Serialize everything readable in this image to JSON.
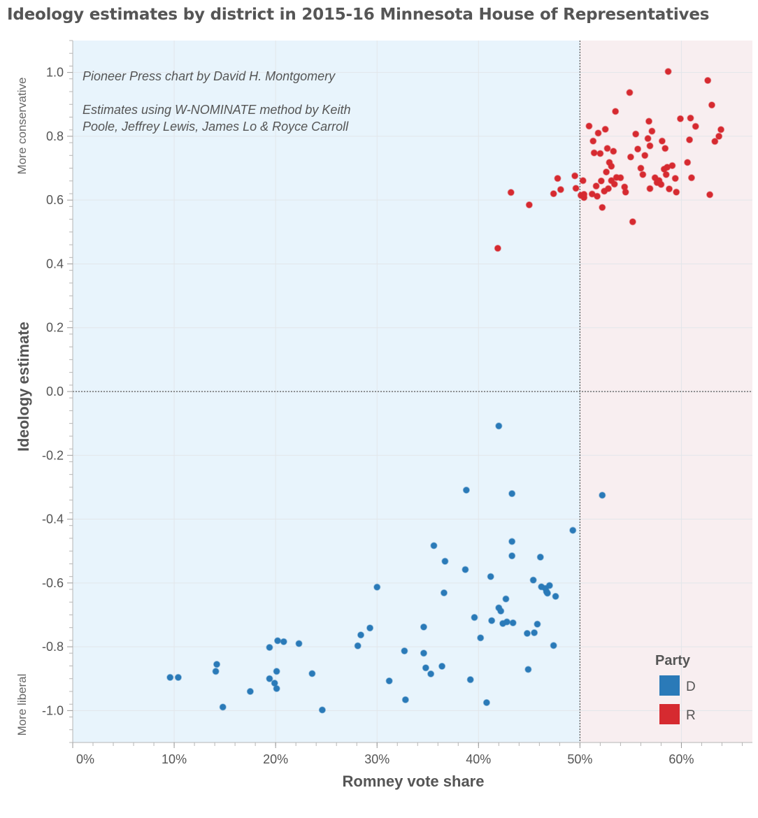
{
  "chart_data": {
    "type": "scatter",
    "title": "Ideology estimates by district in 2015-16 Minnesota House of Representatives",
    "xlabel": "Romney vote share",
    "ylabel": "Ideology estimate",
    "ylabel_top": "More conservative",
    "ylabel_bottom": "More liberal",
    "annotations": [
      "Pioneer Press chart by David H. Montgomery",
      "Estimates using W-NOMINATE method by Keith",
      "Poole, Jeffrey Lewis, James Lo & Royce Carroll"
    ],
    "xlim": [
      0,
      0.67
    ],
    "ylim": [
      -1.1,
      1.1
    ],
    "x_ticks": [
      0,
      0.1,
      0.2,
      0.3,
      0.4,
      0.5,
      0.6
    ],
    "x_tick_labels": [
      "0%",
      "10%",
      "20%",
      "30%",
      "40%",
      "50%",
      "60%"
    ],
    "y_ticks": [
      1.0,
      0.8,
      0.6,
      0.4,
      0.2,
      0.0,
      -0.2,
      -0.4,
      -0.6,
      -0.8,
      -1.0
    ],
    "y_tick_labels": [
      "1.0",
      "0.8",
      "0.6",
      "0.4",
      "0.2",
      "0.0",
      "-0.2",
      "-0.4",
      "-0.6",
      "-0.8",
      "-1.0"
    ],
    "reference_lines": {
      "x": 0.5,
      "y": 0.0
    },
    "background_regions": [
      {
        "x_from": 0,
        "x_to": 0.5,
        "color": "#e8f4fc"
      },
      {
        "x_from": 0.5,
        "x_to": 0.67,
        "color": "#f8eef0"
      }
    ],
    "grid": true,
    "legend": {
      "title": "Party",
      "position": "bottom-right",
      "entries": [
        "D",
        "R"
      ]
    },
    "series": [
      {
        "name": "D",
        "color": "#2a7ab8",
        "points": [
          [
            0.096,
            -0.896
          ],
          [
            0.104,
            -0.896
          ],
          [
            0.141,
            -0.877
          ],
          [
            0.142,
            -0.855
          ],
          [
            0.148,
            -0.989
          ],
          [
            0.175,
            -0.94
          ],
          [
            0.194,
            -0.802
          ],
          [
            0.194,
            -0.9
          ],
          [
            0.199,
            -0.914
          ],
          [
            0.201,
            -0.931
          ],
          [
            0.201,
            -0.877
          ],
          [
            0.202,
            -0.781
          ],
          [
            0.208,
            -0.784
          ],
          [
            0.223,
            -0.79
          ],
          [
            0.236,
            -0.884
          ],
          [
            0.246,
            -0.998
          ],
          [
            0.281,
            -0.797
          ],
          [
            0.284,
            -0.763
          ],
          [
            0.293,
            -0.741
          ],
          [
            0.3,
            -0.613
          ],
          [
            0.312,
            -0.907
          ],
          [
            0.327,
            -0.813
          ],
          [
            0.328,
            -0.966
          ],
          [
            0.346,
            -0.738
          ],
          [
            0.346,
            -0.82
          ],
          [
            0.348,
            -0.866
          ],
          [
            0.353,
            -0.885
          ],
          [
            0.356,
            -0.483
          ],
          [
            0.364,
            -0.861
          ],
          [
            0.366,
            -0.631
          ],
          [
            0.367,
            -0.532
          ],
          [
            0.387,
            -0.558
          ],
          [
            0.388,
            -0.309
          ],
          [
            0.392,
            -0.903
          ],
          [
            0.396,
            -0.708
          ],
          [
            0.402,
            -0.772
          ],
          [
            0.408,
            -0.975
          ],
          [
            0.412,
            -0.58
          ],
          [
            0.413,
            -0.718
          ],
          [
            0.42,
            -0.108
          ],
          [
            0.42,
            -0.678
          ],
          [
            0.422,
            -0.688
          ],
          [
            0.424,
            -0.727
          ],
          [
            0.427,
            -0.65
          ],
          [
            0.428,
            -0.722
          ],
          [
            0.433,
            -0.32
          ],
          [
            0.433,
            -0.47
          ],
          [
            0.433,
            -0.515
          ],
          [
            0.434,
            -0.725
          ],
          [
            0.448,
            -0.758
          ],
          [
            0.449,
            -0.871
          ],
          [
            0.454,
            -0.591
          ],
          [
            0.455,
            -0.756
          ],
          [
            0.458,
            -0.729
          ],
          [
            0.461,
            -0.519
          ],
          [
            0.462,
            -0.612
          ],
          [
            0.466,
            -0.617
          ],
          [
            0.467,
            -0.627
          ],
          [
            0.468,
            -0.632
          ],
          [
            0.47,
            -0.608
          ],
          [
            0.474,
            -0.796
          ],
          [
            0.476,
            -0.642
          ],
          [
            0.493,
            -0.435
          ],
          [
            0.522,
            -0.325
          ]
        ]
      },
      {
        "name": "R",
        "color": "#d62a30",
        "points": [
          [
            0.419,
            0.449
          ],
          [
            0.432,
            0.624
          ],
          [
            0.45,
            0.585
          ],
          [
            0.474,
            0.62
          ],
          [
            0.478,
            0.668
          ],
          [
            0.481,
            0.633
          ],
          [
            0.495,
            0.676
          ],
          [
            0.496,
            0.637
          ],
          [
            0.501,
            0.615
          ],
          [
            0.503,
            0.661
          ],
          [
            0.504,
            0.608
          ],
          [
            0.504,
            0.618
          ],
          [
            0.509,
            0.832
          ],
          [
            0.512,
            0.619
          ],
          [
            0.513,
            0.785
          ],
          [
            0.514,
            0.748
          ],
          [
            0.516,
            0.644
          ],
          [
            0.517,
            0.612
          ],
          [
            0.518,
            0.81
          ],
          [
            0.52,
            0.746
          ],
          [
            0.521,
            0.66
          ],
          [
            0.522,
            0.577
          ],
          [
            0.524,
            0.628
          ],
          [
            0.525,
            0.822
          ],
          [
            0.526,
            0.688
          ],
          [
            0.527,
            0.762
          ],
          [
            0.528,
            0.636
          ],
          [
            0.529,
            0.718
          ],
          [
            0.531,
            0.661
          ],
          [
            0.531,
            0.706
          ],
          [
            0.533,
            0.753
          ],
          [
            0.534,
            0.65
          ],
          [
            0.535,
            0.878
          ],
          [
            0.536,
            0.671
          ],
          [
            0.54,
            0.67
          ],
          [
            0.544,
            0.641
          ],
          [
            0.545,
            0.625
          ],
          [
            0.549,
            0.937
          ],
          [
            0.55,
            0.735
          ],
          [
            0.552,
            0.532
          ],
          [
            0.555,
            0.807
          ],
          [
            0.557,
            0.76
          ],
          [
            0.56,
            0.7
          ],
          [
            0.562,
            0.68
          ],
          [
            0.564,
            0.74
          ],
          [
            0.567,
            0.793
          ],
          [
            0.568,
            0.847
          ],
          [
            0.569,
            0.636
          ],
          [
            0.569,
            0.77
          ],
          [
            0.571,
            0.816
          ],
          [
            0.574,
            0.67
          ],
          [
            0.576,
            0.655
          ],
          [
            0.578,
            0.661
          ],
          [
            0.58,
            0.649
          ],
          [
            0.581,
            0.785
          ],
          [
            0.583,
            0.697
          ],
          [
            0.584,
            0.762
          ],
          [
            0.585,
            0.68
          ],
          [
            0.586,
            0.703
          ],
          [
            0.587,
            1.003
          ],
          [
            0.588,
            0.635
          ],
          [
            0.591,
            0.708
          ],
          [
            0.594,
            0.668
          ],
          [
            0.595,
            0.625
          ],
          [
            0.599,
            0.855
          ],
          [
            0.606,
            0.718
          ],
          [
            0.608,
            0.789
          ],
          [
            0.609,
            0.857
          ],
          [
            0.61,
            0.67
          ],
          [
            0.614,
            0.831
          ],
          [
            0.626,
            0.975
          ],
          [
            0.628,
            0.617
          ],
          [
            0.63,
            0.898
          ],
          [
            0.633,
            0.784
          ],
          [
            0.637,
            0.8
          ],
          [
            0.639,
            0.821
          ]
        ]
      }
    ]
  }
}
